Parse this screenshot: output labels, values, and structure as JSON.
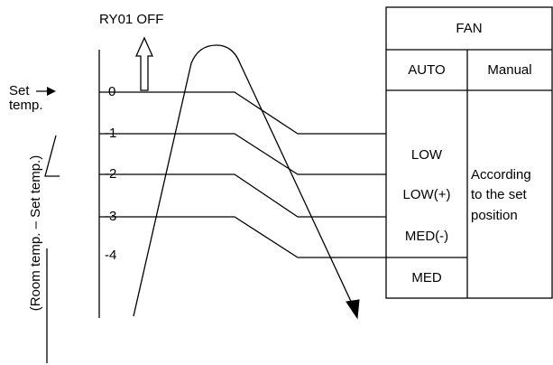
{
  "relay_label": "RY01  OFF",
  "set_temp": [
    "Set",
    "temp."
  ],
  "axis_label": "(Room temp. – Set temp.)",
  "levels": [
    "0",
    "-1",
    "-2",
    "-3",
    "-4"
  ],
  "table": {
    "header": "FAN",
    "columns": [
      "AUTO",
      "Manual"
    ],
    "auto_cells": [
      "LOW",
      "LOW(+)",
      "MED(-)",
      "MED"
    ],
    "manual_text": [
      "According",
      "to the set",
      "position"
    ]
  }
}
